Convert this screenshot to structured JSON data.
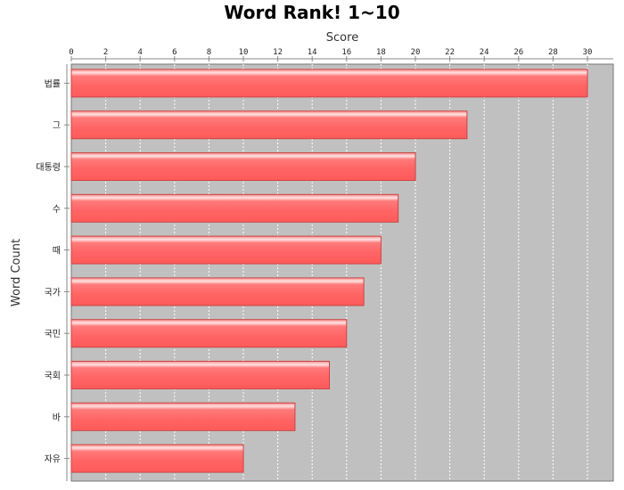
{
  "chart_data": {
    "type": "bar",
    "orientation": "horizontal",
    "title": "Word Rank! 1~10",
    "xlabel": "Score",
    "ylabel": "Word Count",
    "x_axis_position": "top",
    "xlim": [
      0,
      32
    ],
    "x_ticks": [
      0,
      2,
      4,
      6,
      8,
      10,
      12,
      14,
      16,
      18,
      20,
      22,
      24,
      26,
      28,
      30
    ],
    "grid": true,
    "legend": "none",
    "categories": [
      "법률",
      "그",
      "대통령",
      "수",
      "때",
      "국가",
      "국민",
      "국회",
      "바",
      "자유"
    ],
    "values": [
      30,
      23,
      20,
      19,
      18,
      17,
      16,
      15,
      13,
      10
    ],
    "colors": {
      "bar": "#ff6666",
      "bar_highlight": "#ffd6d6",
      "bar_outline": "#cc4444",
      "plot_background": "#c0c0c0",
      "gridline": "#ffffff"
    }
  }
}
